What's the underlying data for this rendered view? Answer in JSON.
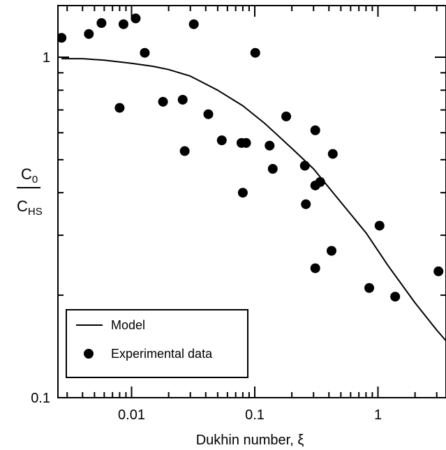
{
  "chart_data": {
    "type": "scatter",
    "title": "",
    "xlabel": "Dukhin number, ξ",
    "ylabel": {
      "numerator": {
        "base": "C",
        "sub": "0"
      },
      "denominator": {
        "base": "C",
        "sub": "HS"
      }
    },
    "xscale": "log",
    "yscale": "log",
    "xlim": [
      0.0025,
      4
    ],
    "ylim": [
      0.1,
      1.6
    ],
    "x_tick_labels": [
      "0.01",
      "0.1",
      "1"
    ],
    "y_tick_labels": [
      "1",
      "0.1"
    ],
    "legend_position": "bottom-left",
    "series": [
      {
        "name": "Model",
        "kind": "line",
        "color": "#000000",
        "x": [
          0.0027,
          0.004,
          0.006,
          0.01,
          0.015,
          0.02,
          0.03,
          0.05,
          0.08,
          0.12,
          0.2,
          0.3,
          0.5,
          0.8,
          1.2,
          2,
          3,
          4
        ],
        "y": [
          0.99,
          0.99,
          0.98,
          0.96,
          0.94,
          0.92,
          0.88,
          0.8,
          0.72,
          0.64,
          0.54,
          0.47,
          0.375,
          0.305,
          0.245,
          0.19,
          0.158,
          0.14
        ]
      },
      {
        "name": "Experimental data",
        "kind": "scatter",
        "color": "#000000",
        "x": [
          0.0027,
          0.0045,
          0.0057,
          0.0086,
          0.0108,
          0.0128,
          0.008,
          0.018,
          0.026,
          0.032,
          0.027,
          0.042,
          0.054,
          0.078,
          0.085,
          0.08,
          0.101,
          0.132,
          0.14,
          0.18,
          0.255,
          0.26,
          0.31,
          0.31,
          0.34,
          0.31,
          0.43,
          0.42,
          1.03,
          0.85,
          1.38,
          3.1
        ],
        "y": [
          1.14,
          1.17,
          1.26,
          1.25,
          1.3,
          1.03,
          0.71,
          0.74,
          0.75,
          1.25,
          0.53,
          0.68,
          0.57,
          0.56,
          0.56,
          0.4,
          1.03,
          0.55,
          0.47,
          0.67,
          0.48,
          0.37,
          0.42,
          0.61,
          0.43,
          0.24,
          0.52,
          0.27,
          0.32,
          0.21,
          0.198,
          0.235
        ]
      }
    ]
  }
}
